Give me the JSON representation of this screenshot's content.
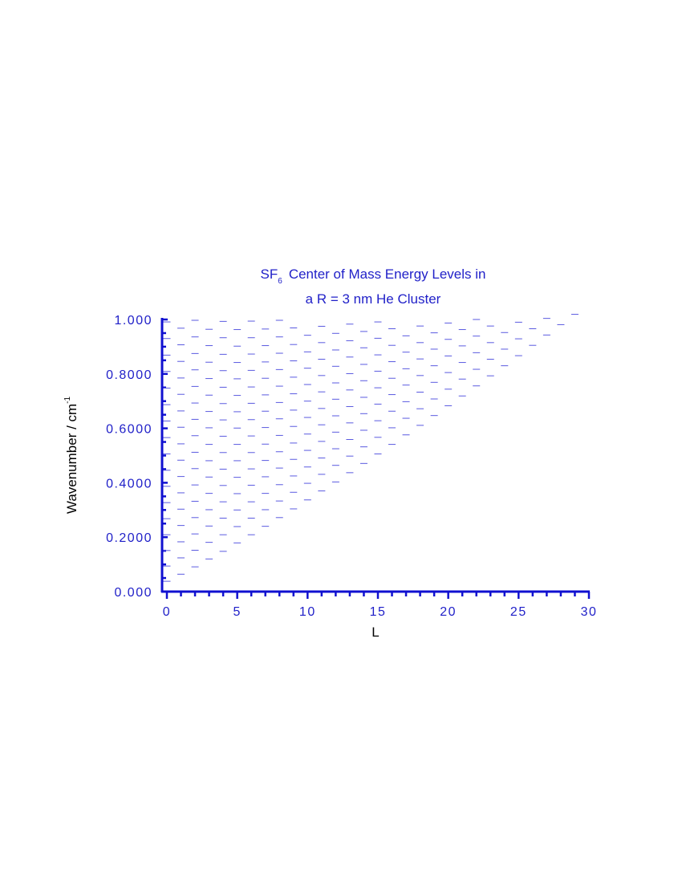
{
  "colors": {
    "axis": "#1010d0",
    "text": "#1f1fc8",
    "level": "#5a5ae0",
    "label": "#000000"
  },
  "chart_data": {
    "type": "scatter",
    "marker": "horizontal-dash",
    "title": {
      "line1_main": "SF",
      "line1_subscript": "6",
      "line1_rest": "Center of Mass Energy Levels in",
      "line2": "a R = 3 nm He Cluster"
    },
    "xlabel": "L",
    "ylabel": {
      "main": "Wavenumber  / cm",
      "superscript": "-1"
    },
    "xlim": [
      0,
      30
    ],
    "ylim": [
      0,
      1
    ],
    "x_ticks": [
      0,
      5,
      10,
      15,
      20,
      25,
      30
    ],
    "x_tick_labels": [
      "0",
      "5",
      "10",
      "15",
      "20",
      "25",
      "30"
    ],
    "y_ticks": [
      0,
      0.2,
      0.4,
      0.6,
      0.8,
      1.0
    ],
    "y_tick_labels": [
      "0.000",
      "0.2000",
      "0.4000",
      "0.6000",
      "0.8000",
      "1.000"
    ],
    "levels": [
      {
        "L": 0,
        "E": [
          0.038,
          0.094,
          0.151,
          0.209,
          0.268,
          0.327,
          0.387,
          0.446,
          0.506,
          0.566,
          0.627,
          0.687,
          0.748,
          0.809,
          0.869,
          0.93,
          0.991
        ]
      },
      {
        "L": 1,
        "E": [
          0.064,
          0.124,
          0.183,
          0.243,
          0.303,
          0.363,
          0.423,
          0.483,
          0.543,
          0.604,
          0.664,
          0.725,
          0.785,
          0.846,
          0.907,
          0.968
        ]
      },
      {
        "L": 2,
        "E": [
          0.091,
          0.152,
          0.212,
          0.272,
          0.332,
          0.392,
          0.452,
          0.512,
          0.573,
          0.633,
          0.693,
          0.754,
          0.815,
          0.875,
          0.936,
          0.997
        ]
      },
      {
        "L": 3,
        "E": [
          0.12,
          0.181,
          0.241,
          0.301,
          0.361,
          0.421,
          0.481,
          0.541,
          0.602,
          0.662,
          0.722,
          0.783,
          0.843,
          0.904,
          0.964
        ]
      },
      {
        "L": 4,
        "E": [
          0.148,
          0.209,
          0.27,
          0.33,
          0.39,
          0.45,
          0.511,
          0.571,
          0.631,
          0.691,
          0.751,
          0.812,
          0.872,
          0.933,
          0.993
        ]
      },
      {
        "L": 5,
        "E": [
          0.179,
          0.239,
          0.3,
          0.36,
          0.42,
          0.481,
          0.541,
          0.601,
          0.661,
          0.721,
          0.782,
          0.842,
          0.902,
          0.963
        ]
      },
      {
        "L": 6,
        "E": [
          0.209,
          0.27,
          0.33,
          0.391,
          0.451,
          0.511,
          0.572,
          0.632,
          0.692,
          0.752,
          0.813,
          0.873,
          0.933,
          0.994
        ]
      },
      {
        "L": 7,
        "E": [
          0.24,
          0.301,
          0.361,
          0.422,
          0.482,
          0.542,
          0.603,
          0.663,
          0.723,
          0.784,
          0.844,
          0.904,
          0.965
        ]
      },
      {
        "L": 8,
        "E": [
          0.272,
          0.333,
          0.393,
          0.454,
          0.514,
          0.574,
          0.635,
          0.695,
          0.755,
          0.816,
          0.876,
          0.936,
          0.997
        ]
      },
      {
        "L": 9,
        "E": [
          0.304,
          0.365,
          0.425,
          0.486,
          0.546,
          0.607,
          0.667,
          0.727,
          0.788,
          0.848,
          0.908,
          0.969
        ]
      },
      {
        "L": 10,
        "E": [
          0.337,
          0.398,
          0.458,
          0.519,
          0.579,
          0.64,
          0.7,
          0.761,
          0.821,
          0.881,
          0.942
        ]
      },
      {
        "L": 11,
        "E": [
          0.37,
          0.431,
          0.491,
          0.552,
          0.613,
          0.673,
          0.734,
          0.794,
          0.854,
          0.915,
          0.975
        ]
      },
      {
        "L": 12,
        "E": [
          0.403,
          0.464,
          0.525,
          0.586,
          0.646,
          0.707,
          0.767,
          0.828,
          0.888,
          0.949
        ]
      },
      {
        "L": 13,
        "E": [
          0.437,
          0.498,
          0.559,
          0.62,
          0.68,
          0.741,
          0.801,
          0.862,
          0.922,
          0.983
        ]
      },
      {
        "L": 14,
        "E": [
          0.471,
          0.532,
          0.593,
          0.654,
          0.714,
          0.775,
          0.835,
          0.896,
          0.956
        ]
      },
      {
        "L": 15,
        "E": [
          0.506,
          0.567,
          0.628,
          0.689,
          0.749,
          0.81,
          0.87,
          0.931,
          0.991
        ]
      },
      {
        "L": 16,
        "E": [
          0.541,
          0.602,
          0.663,
          0.724,
          0.784,
          0.845,
          0.905,
          0.966
        ]
      },
      {
        "L": 17,
        "E": [
          0.576,
          0.637,
          0.698,
          0.759,
          0.819,
          0.88,
          0.94
        ]
      },
      {
        "L": 18,
        "E": [
          0.611,
          0.672,
          0.733,
          0.794,
          0.855,
          0.915,
          0.976
        ]
      },
      {
        "L": 19,
        "E": [
          0.647,
          0.708,
          0.769,
          0.83,
          0.891,
          0.951
        ]
      },
      {
        "L": 20,
        "E": [
          0.683,
          0.744,
          0.805,
          0.866,
          0.927,
          0.987
        ]
      },
      {
        "L": 21,
        "E": [
          0.719,
          0.781,
          0.842,
          0.903,
          0.963
        ]
      },
      {
        "L": 22,
        "E": [
          0.756,
          0.817,
          0.878,
          0.939,
          1.0
        ]
      },
      {
        "L": 23,
        "E": [
          0.793,
          0.854,
          0.915,
          0.976
        ]
      },
      {
        "L": 24,
        "E": [
          0.83,
          0.891,
          0.952
        ]
      },
      {
        "L": 25,
        "E": [
          0.867,
          0.929,
          0.99
        ]
      },
      {
        "L": 26,
        "E": [
          0.905,
          0.966
        ]
      },
      {
        "L": 27,
        "E": [
          0.943,
          1.004
        ]
      },
      {
        "L": 28,
        "E": [
          0.981
        ]
      },
      {
        "L": 29,
        "E": [
          1.019
        ]
      }
    ],
    "grid": false,
    "legend": "none"
  }
}
